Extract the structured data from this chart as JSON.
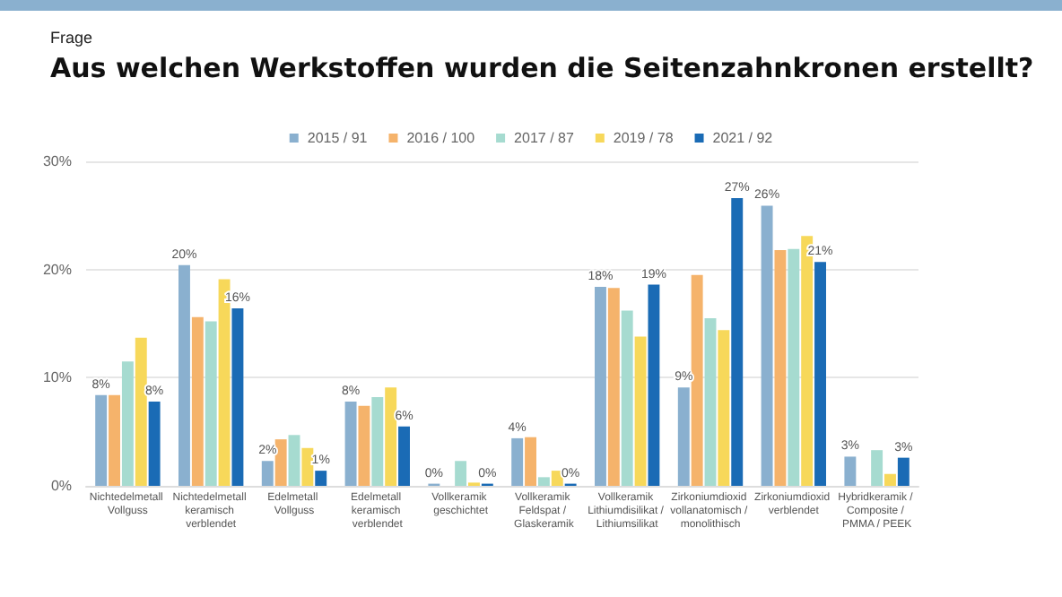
{
  "chart_data": {
    "type": "bar",
    "subtitle": "Frage",
    "title": "Aus welchen Werkstoffen wurden die Seitenzahnkronen erstellt?",
    "categories": [
      "Nichtedelmetall Vollguss",
      "Nichtedelmetall keramisch verblendet",
      "Edelmetall Vollguss",
      "Edelmetall keramisch verblendet",
      "Vollkeramik geschichtet",
      "Vollkeramik Feldspat / Glaskeramik",
      "Vollkeramik Lithiumdisilikat / Lithiumsilikat",
      "Zirkoniumdioxid vollanatomisch / monolithisch",
      "Zirkoniumdioxid verblendet",
      "Hybridkeramik / Composite / PMMA / PEEK"
    ],
    "series": [
      {
        "name": "2015 / 91",
        "color": "#8ab0cf",
        "values": [
          8.4,
          20.4,
          2.3,
          7.8,
          0.2,
          4.4,
          18.4,
          9.1,
          25.9,
          2.7
        ],
        "value_labels": [
          "8%",
          "20%",
          "2%",
          "8%",
          "0%",
          "4%",
          "18%",
          "9%",
          "26%",
          "3%"
        ]
      },
      {
        "name": "2016 / 100",
        "color": "#f5b36b",
        "values": [
          8.4,
          15.6,
          4.3,
          7.4,
          0,
          4.5,
          18.3,
          19.5,
          21.8,
          0
        ]
      },
      {
        "name": "2017 / 87",
        "color": "#a6dbd0",
        "values": [
          11.5,
          15.2,
          4.7,
          8.2,
          2.3,
          0.8,
          16.2,
          15.5,
          21.9,
          3.3
        ]
      },
      {
        "name": "2019 / 78",
        "color": "#f7d85a",
        "values": [
          13.7,
          19.1,
          3.5,
          9.1,
          0.3,
          1.4,
          13.8,
          14.4,
          23.1,
          1.1
        ]
      },
      {
        "name": "2021 / 92",
        "color": "#1a6bb5",
        "values": [
          7.8,
          16.4,
          1.4,
          5.5,
          0.2,
          0.2,
          18.6,
          26.6,
          20.7,
          2.6
        ],
        "value_labels": [
          "8%",
          "16%",
          "1%",
          "6%",
          "0%",
          "0%",
          "19%",
          "27%",
          "21%",
          "3%"
        ]
      }
    ],
    "ylim": [
      0,
      30
    ],
    "yticks": [
      {
        "value": 0,
        "label": "0%"
      },
      {
        "value": 10,
        "label": "10%"
      },
      {
        "value": 20,
        "label": "20%"
      },
      {
        "value": 30,
        "label": "30%"
      }
    ],
    "grid": "y",
    "legend": "top"
  }
}
